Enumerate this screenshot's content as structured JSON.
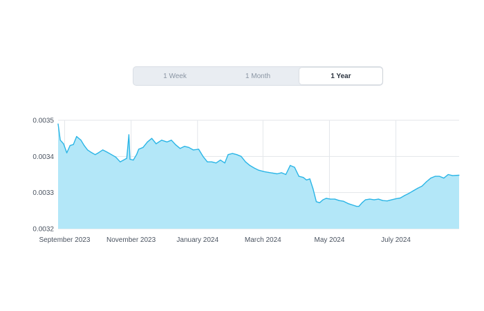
{
  "range_selector": {
    "tabs": [
      {
        "label": "1 Week",
        "active": false
      },
      {
        "label": "1 Month",
        "active": false
      },
      {
        "label": "1 Year",
        "active": true
      }
    ]
  },
  "colors": {
    "line": "#2ab5e6",
    "fill": "#b3e7f8",
    "grid": "#e3e6ea",
    "text": "#4a5360"
  },
  "chart_data": {
    "type": "area",
    "title": "",
    "xlabel": "",
    "ylabel": "",
    "ylim": [
      0.0032,
      0.0035
    ],
    "xlim": [
      "2023-08-26",
      "2024-08-28"
    ],
    "grid": true,
    "legend": "none",
    "x_ticks": [
      {
        "label": "September 2023",
        "date": "2023-09-01"
      },
      {
        "label": "November 2023",
        "date": "2023-11-01"
      },
      {
        "label": "January 2024",
        "date": "2024-01-01"
      },
      {
        "label": "March 2024",
        "date": "2024-03-01"
      },
      {
        "label": "May 2024",
        "date": "2024-05-01"
      },
      {
        "label": "July 2024",
        "date": "2024-07-01"
      }
    ],
    "y_ticks": [
      {
        "label": "0.0035",
        "value": 0.0035
      },
      {
        "label": "0.0034",
        "value": 0.0034
      },
      {
        "label": "0.0033",
        "value": 0.0033
      },
      {
        "label": "0.0032",
        "value": 0.0032
      }
    ],
    "series": [
      {
        "points": [
          [
            "2023-08-26",
            0.00349
          ],
          [
            "2023-08-28",
            0.003445
          ],
          [
            "2023-08-31",
            0.003435
          ],
          [
            "2023-09-03",
            0.00341
          ],
          [
            "2023-09-06",
            0.00343
          ],
          [
            "2023-09-09",
            0.003433
          ],
          [
            "2023-09-12",
            0.003455
          ],
          [
            "2023-09-16",
            0.003445
          ],
          [
            "2023-09-19",
            0.00343
          ],
          [
            "2023-09-22",
            0.003418
          ],
          [
            "2023-09-25",
            0.003412
          ],
          [
            "2023-09-29",
            0.003405
          ],
          [
            "2023-10-02",
            0.00341
          ],
          [
            "2023-10-06",
            0.003418
          ],
          [
            "2023-10-10",
            0.003412
          ],
          [
            "2023-10-14",
            0.003405
          ],
          [
            "2023-10-18",
            0.003398
          ],
          [
            "2023-10-22",
            0.003385
          ],
          [
            "2023-10-25",
            0.00339
          ],
          [
            "2023-10-28",
            0.003395
          ],
          [
            "2023-10-30",
            0.00346
          ],
          [
            "2023-10-31",
            0.003392
          ],
          [
            "2023-11-03",
            0.00339
          ],
          [
            "2023-11-06",
            0.003405
          ],
          [
            "2023-11-08",
            0.00342
          ],
          [
            "2023-11-12",
            0.003425
          ],
          [
            "2023-11-16",
            0.00344
          ],
          [
            "2023-11-20",
            0.00345
          ],
          [
            "2023-11-24",
            0.003435
          ],
          [
            "2023-11-29",
            0.003445
          ],
          [
            "2023-12-04",
            0.00344
          ],
          [
            "2023-12-08",
            0.003445
          ],
          [
            "2023-12-12",
            0.003432
          ],
          [
            "2023-12-16",
            0.003422
          ],
          [
            "2023-12-20",
            0.003428
          ],
          [
            "2023-12-24",
            0.003425
          ],
          [
            "2023-12-28",
            0.003418
          ],
          [
            "2024-01-02",
            0.00342
          ],
          [
            "2024-01-06",
            0.0034
          ],
          [
            "2024-01-10",
            0.003385
          ],
          [
            "2024-01-14",
            0.003385
          ],
          [
            "2024-01-18",
            0.003382
          ],
          [
            "2024-01-22",
            0.00339
          ],
          [
            "2024-01-26",
            0.003382
          ],
          [
            "2024-01-29",
            0.003405
          ],
          [
            "2024-02-02",
            0.003408
          ],
          [
            "2024-02-06",
            0.003405
          ],
          [
            "2024-02-10",
            0.0034
          ],
          [
            "2024-02-14",
            0.003385
          ],
          [
            "2024-02-18",
            0.003375
          ],
          [
            "2024-02-22",
            0.003368
          ],
          [
            "2024-02-26",
            0.003362
          ],
          [
            "2024-03-02",
            0.003358
          ],
          [
            "2024-03-06",
            0.003356
          ],
          [
            "2024-03-10",
            0.003354
          ],
          [
            "2024-03-14",
            0.003352
          ],
          [
            "2024-03-18",
            0.003355
          ],
          [
            "2024-03-22",
            0.00335
          ],
          [
            "2024-03-26",
            0.003375
          ],
          [
            "2024-03-30",
            0.00337
          ],
          [
            "2024-04-03",
            0.003345
          ],
          [
            "2024-04-07",
            0.003342
          ],
          [
            "2024-04-10",
            0.003335
          ],
          [
            "2024-04-13",
            0.003338
          ],
          [
            "2024-04-16",
            0.00331
          ],
          [
            "2024-04-19",
            0.003275
          ],
          [
            "2024-04-22",
            0.003272
          ],
          [
            "2024-04-25",
            0.00328
          ],
          [
            "2024-04-28",
            0.003284
          ],
          [
            "2024-05-02",
            0.003282
          ],
          [
            "2024-05-06",
            0.003282
          ],
          [
            "2024-05-10",
            0.003278
          ],
          [
            "2024-05-14",
            0.003276
          ],
          [
            "2024-05-18",
            0.00327
          ],
          [
            "2024-05-22",
            0.003266
          ],
          [
            "2024-05-26",
            0.003262
          ],
          [
            "2024-05-28",
            0.003262
          ],
          [
            "2024-05-31",
            0.003272
          ],
          [
            "2024-06-03",
            0.00328
          ],
          [
            "2024-06-07",
            0.003282
          ],
          [
            "2024-06-11",
            0.00328
          ],
          [
            "2024-06-15",
            0.003282
          ],
          [
            "2024-06-19",
            0.003278
          ],
          [
            "2024-06-23",
            0.003277
          ],
          [
            "2024-06-27",
            0.00328
          ],
          [
            "2024-07-01",
            0.003283
          ],
          [
            "2024-07-05",
            0.003285
          ],
          [
            "2024-07-09",
            0.003292
          ],
          [
            "2024-07-13",
            0.003298
          ],
          [
            "2024-07-17",
            0.003305
          ],
          [
            "2024-07-21",
            0.003312
          ],
          [
            "2024-07-25",
            0.003318
          ],
          [
            "2024-07-29",
            0.00333
          ],
          [
            "2024-08-02",
            0.00334
          ],
          [
            "2024-08-06",
            0.003345
          ],
          [
            "2024-08-10",
            0.003345
          ],
          [
            "2024-08-14",
            0.00334
          ],
          [
            "2024-08-18",
            0.00335
          ],
          [
            "2024-08-22",
            0.003347
          ],
          [
            "2024-08-28",
            0.003348
          ]
        ]
      }
    ]
  }
}
